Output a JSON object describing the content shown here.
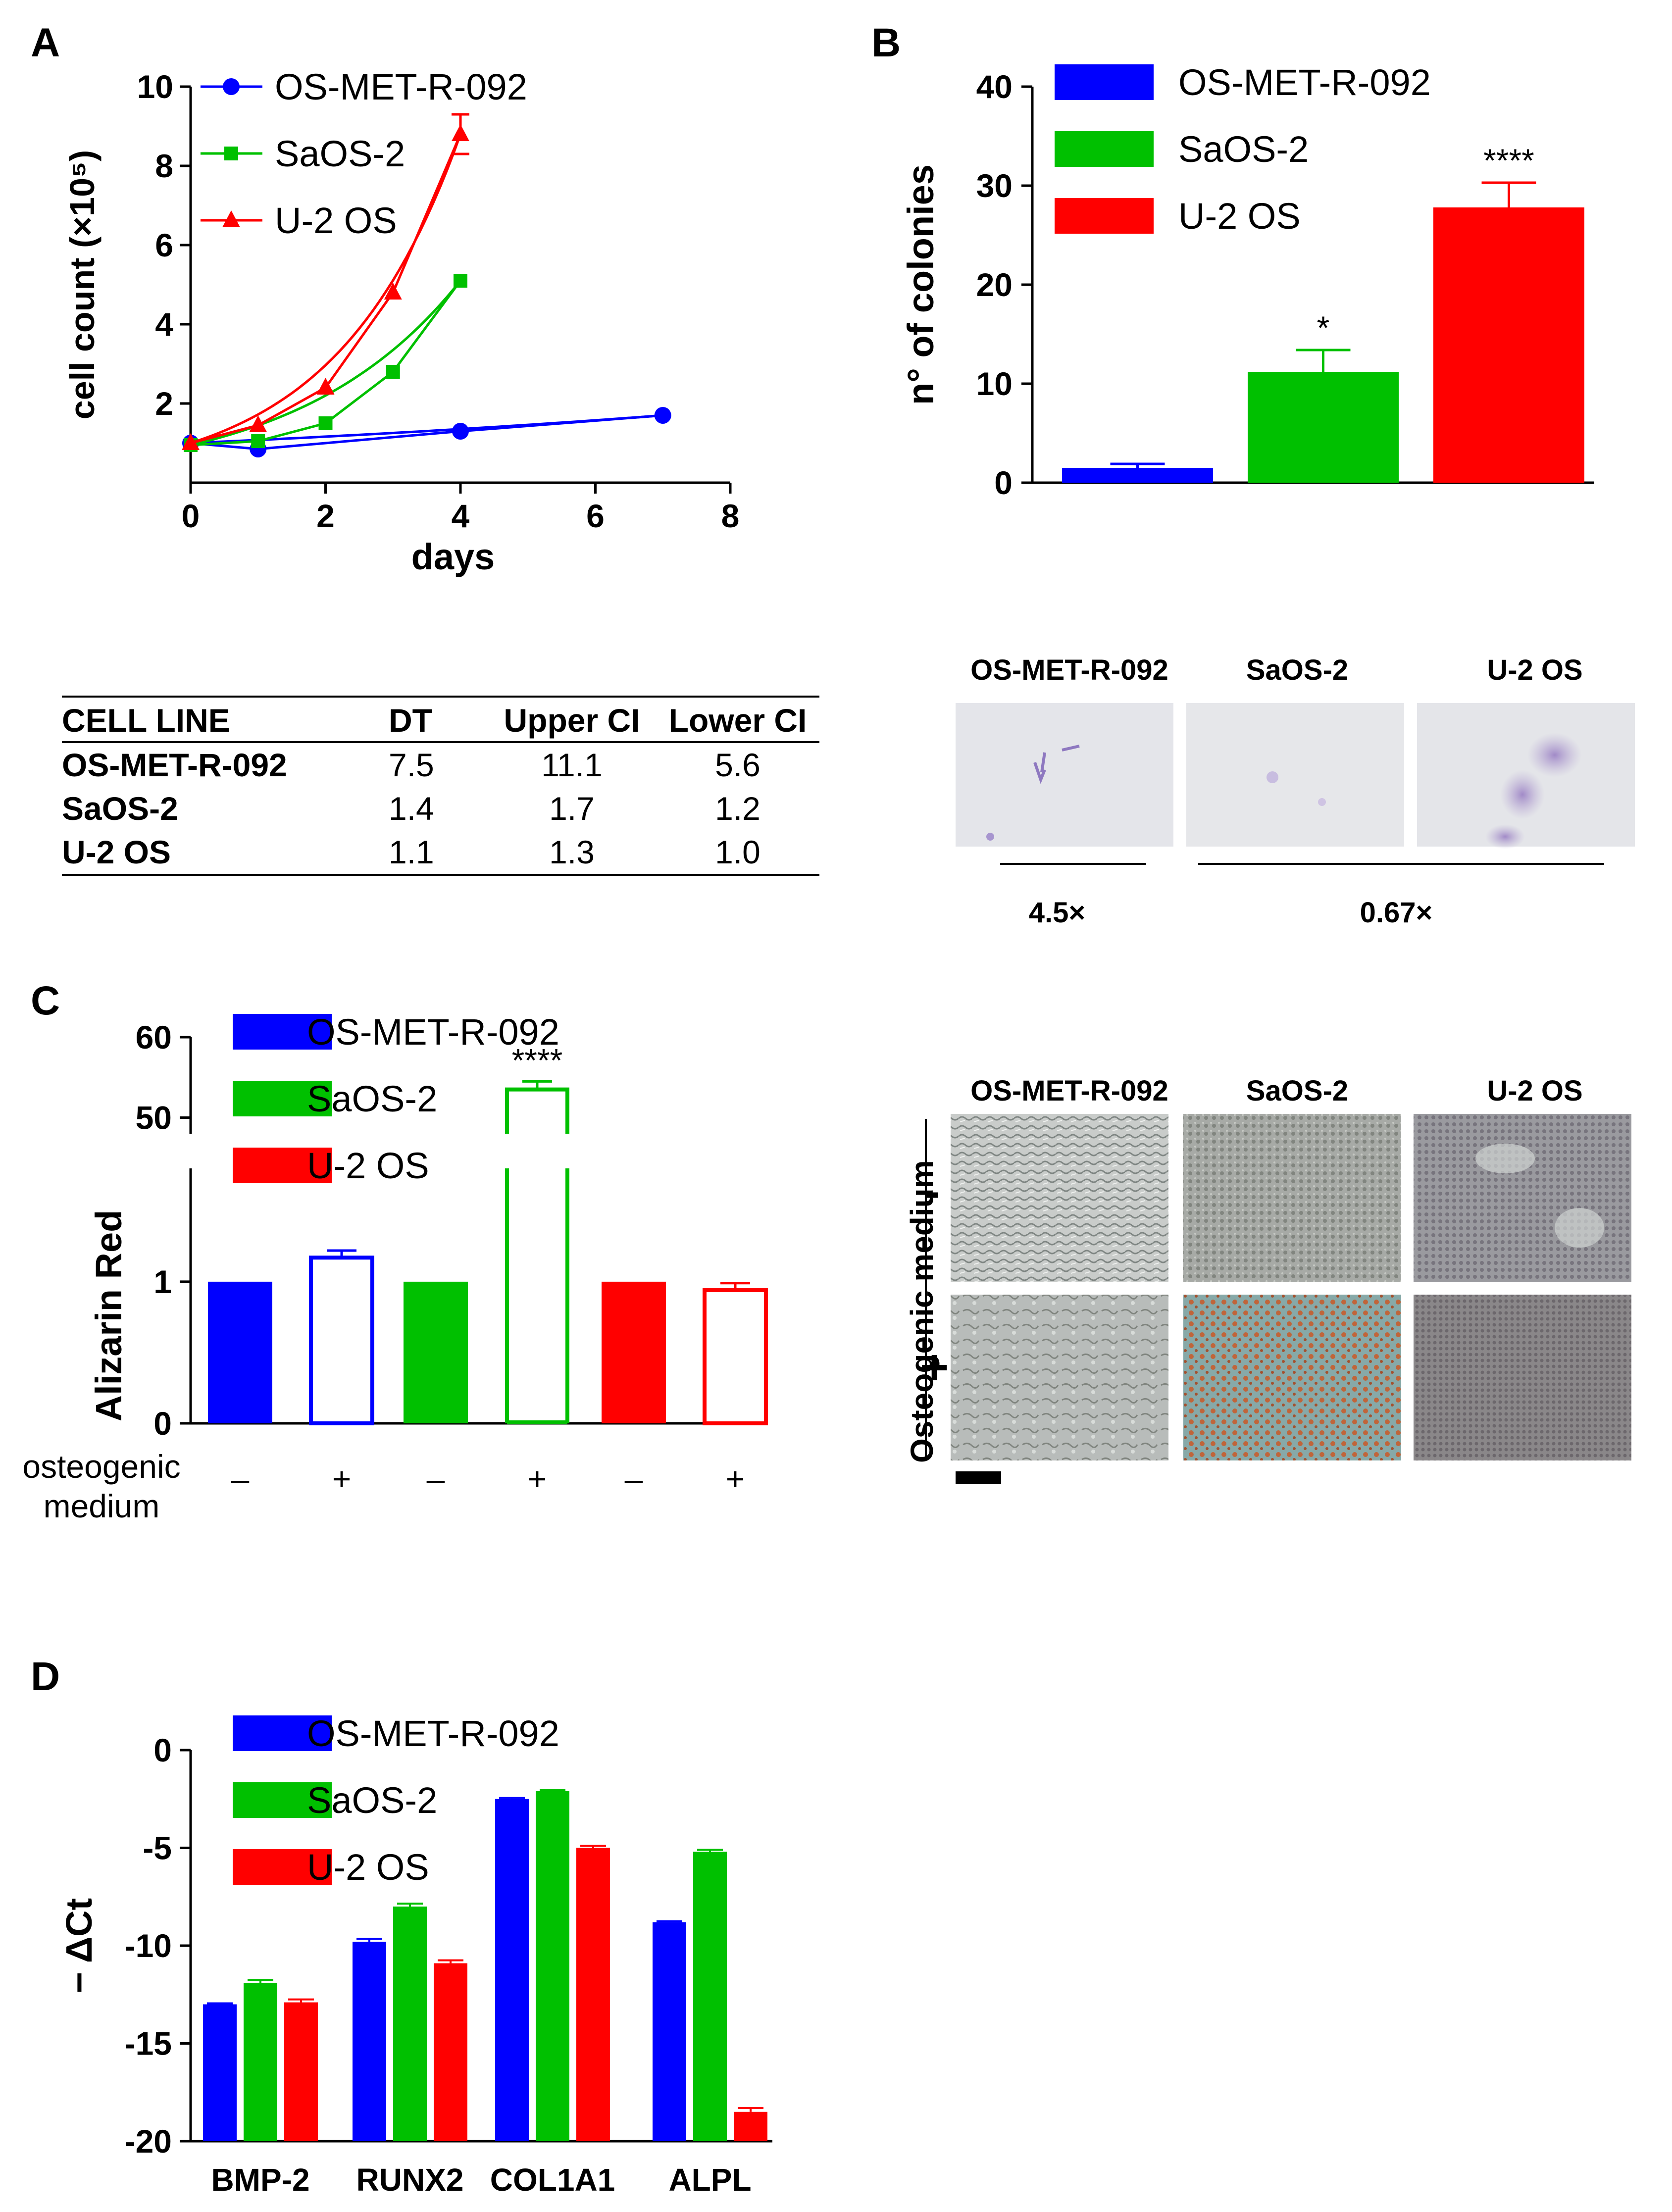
{
  "panels": {
    "a": "A",
    "b": "B",
    "c": "C",
    "d": "D"
  },
  "legend": {
    "series": [
      "OS-MET-R-092",
      "SaOS-2",
      "U-2 OS"
    ],
    "colors": [
      "#0000ff",
      "#00c000",
      "#ff0000"
    ]
  },
  "chart_data": [
    {
      "id": "A",
      "type": "line",
      "xlabel": "days",
      "ylabel": "cell count (×10⁵)",
      "xlim": [
        0,
        8
      ],
      "ylim": [
        0,
        10
      ],
      "xticks": [
        0,
        2,
        4,
        6,
        8
      ],
      "yticks": [
        2,
        4,
        6,
        8,
        10
      ],
      "series": [
        {
          "name": "OS-MET-R-092",
          "marker": "circle",
          "x": [
            0,
            1,
            4,
            7
          ],
          "y": [
            1.0,
            0.85,
            1.3,
            1.7
          ],
          "err": [
            0,
            0,
            0,
            0
          ]
        },
        {
          "name": "SaOS-2",
          "marker": "square",
          "x": [
            0,
            1,
            2,
            3,
            4
          ],
          "y": [
            0.95,
            1.05,
            1.5,
            2.8,
            5.1
          ],
          "err": [
            0,
            0,
            0,
            0,
            0
          ]
        },
        {
          "name": "U-2 OS",
          "marker": "triangle",
          "x": [
            0,
            1,
            2,
            3,
            4
          ],
          "y": [
            1.0,
            1.45,
            2.4,
            4.8,
            8.8
          ],
          "err": [
            0,
            0,
            0,
            0,
            0.5
          ]
        }
      ]
    },
    {
      "id": "B",
      "type": "bar",
      "ylabel": "n° of colonies",
      "ylim": [
        0,
        40
      ],
      "yticks": [
        0,
        10,
        20,
        30,
        40
      ],
      "categories": [
        "OS-MET-R-092",
        "SaOS-2",
        "U-2 OS"
      ],
      "values": [
        1.5,
        11.2,
        27.8
      ],
      "errors": [
        0.4,
        2.2,
        2.5
      ],
      "annotations": [
        "",
        "*",
        "****"
      ]
    },
    {
      "id": "C",
      "type": "bar",
      "ylabel": "Alizarin Red",
      "ylim_lower": [
        0,
        1.8
      ],
      "ylim_upper": [
        48,
        60
      ],
      "yticks_lower": [
        0,
        1
      ],
      "yticks_upper": [
        50,
        60
      ],
      "xlabel_lines": [
        "osteogenic",
        "medium"
      ],
      "groups": [
        "OS-MET-R-092",
        "SaOS-2",
        "U-2 OS"
      ],
      "conditions": [
        "–",
        "+"
      ],
      "values": [
        [
          1.0,
          1.17
        ],
        [
          1.0,
          53.5
        ],
        [
          1.0,
          0.94
        ]
      ],
      "errors": [
        [
          0,
          0.05
        ],
        [
          0,
          1.0
        ],
        [
          0,
          0.05
        ]
      ],
      "annotations": [
        [
          "",
          ""
        ],
        [
          "",
          "****"
        ],
        [
          "",
          ""
        ]
      ]
    },
    {
      "id": "D",
      "type": "bar",
      "ylabel": "− ΔCt",
      "ylim": [
        -20,
        0
      ],
      "yticks": [
        0,
        -5,
        -10,
        -15,
        -20
      ],
      "categories": [
        "BMP-2",
        "RUNX2",
        "COL1A1",
        "ALPL"
      ],
      "series": [
        {
          "name": "OS-MET-R-092",
          "values": [
            -13.0,
            -9.8,
            -2.5,
            -8.8
          ],
          "errors": [
            0.05,
            0.15,
            0.05,
            0.05
          ]
        },
        {
          "name": "SaOS-2",
          "values": [
            -11.9,
            -8.0,
            -2.1,
            -5.2
          ],
          "errors": [
            0.15,
            0.15,
            0.05,
            0.1
          ]
        },
        {
          "name": "U-2 OS",
          "values": [
            -12.9,
            -10.9,
            -5.0,
            -18.5
          ],
          "errors": [
            0.15,
            0.15,
            0.1,
            0.2
          ]
        }
      ]
    }
  ],
  "table": {
    "headers": [
      "CELL LINE",
      "DT",
      "Upper CI",
      "Lower CI"
    ],
    "rows": [
      [
        "OS-MET-R-092",
        "7.5",
        "11.1",
        "5.6"
      ],
      [
        "SaOS-2",
        "1.4",
        "1.7",
        "1.2"
      ],
      [
        "U-2 OS",
        "1.1",
        "1.3",
        "1.0"
      ]
    ]
  },
  "micro_b": {
    "labels": [
      "OS-MET-R-092",
      "SaOS-2",
      "U-2 OS"
    ],
    "mag_left": "4.5×",
    "mag_right": "0.67×"
  },
  "micro_c": {
    "labels": [
      "OS-MET-R-092",
      "SaOS-2",
      "U-2 OS"
    ],
    "side_label": "Osteogenic medium",
    "minus": "-",
    "plus": "+"
  }
}
